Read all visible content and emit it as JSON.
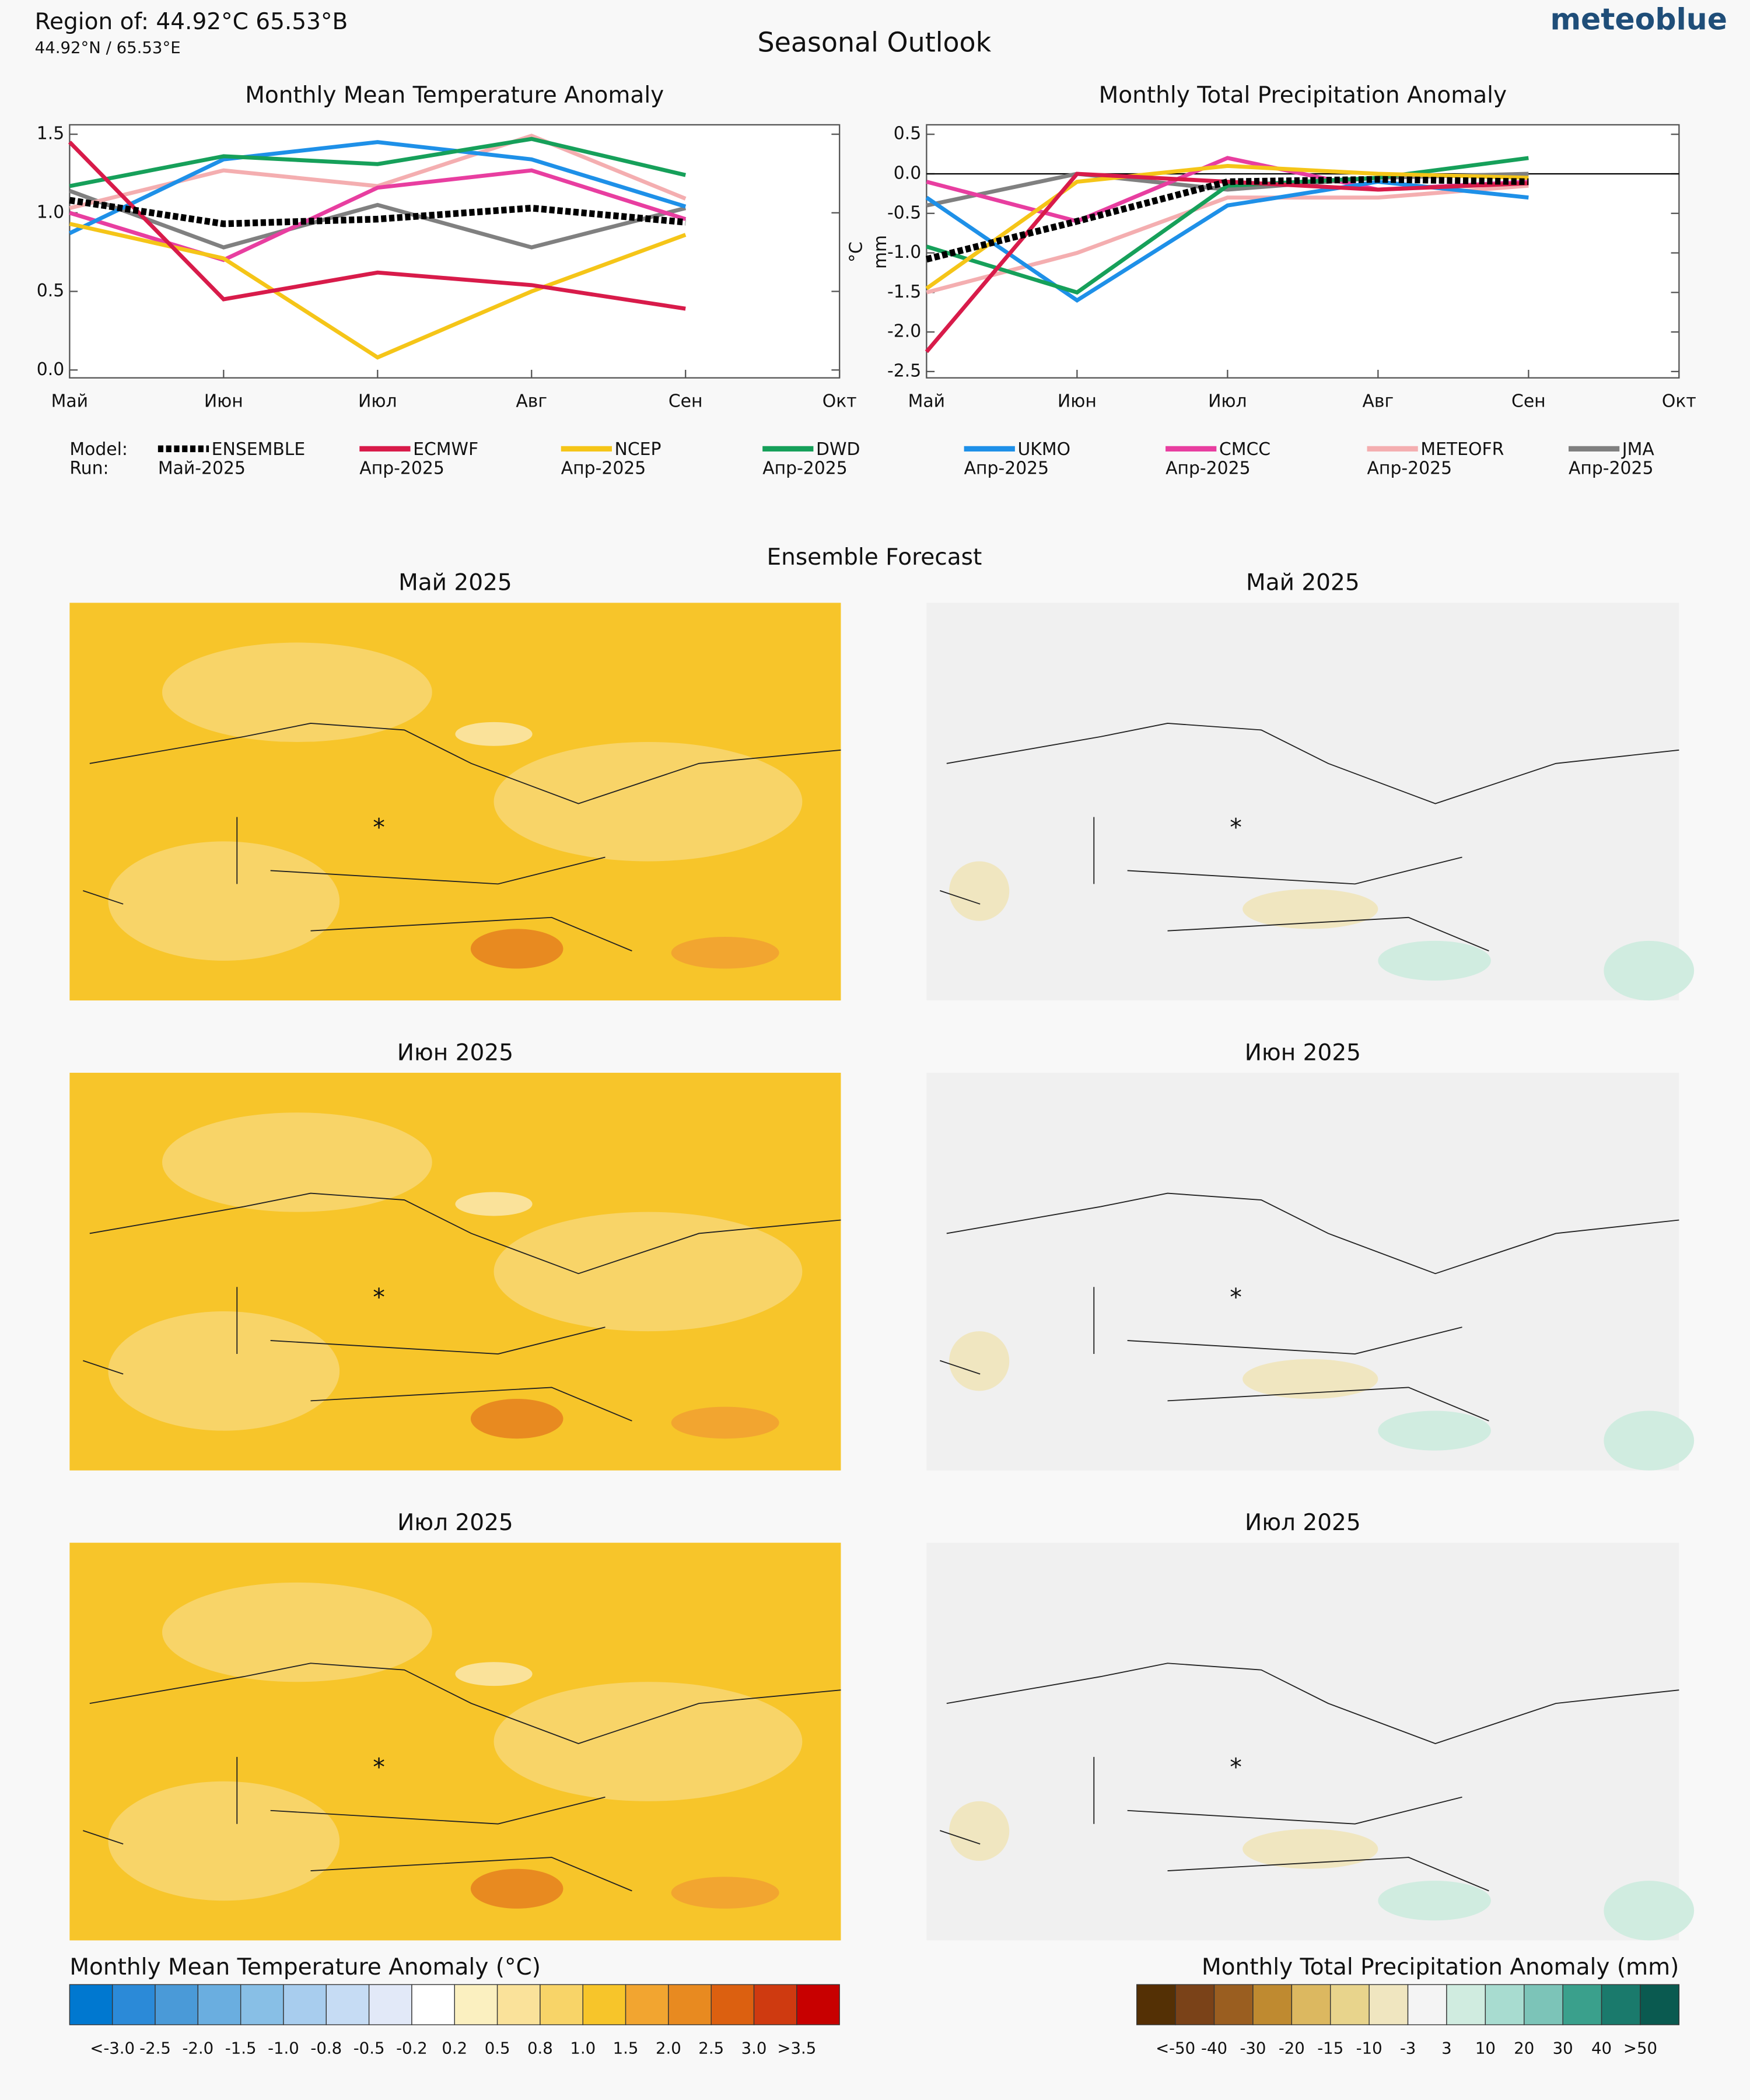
{
  "header": {
    "region": "Region of: 44.92°C 65.53°B",
    "coords": "44.92°N / 65.53°E",
    "title": "Seasonal Outlook",
    "brand": "meteoblue"
  },
  "chart_data": [
    {
      "type": "line",
      "title": "Monthly Mean Temperature Anomaly",
      "ylabel": "°C",
      "categories": [
        "Май",
        "Июн",
        "Июл",
        "Авг",
        "Сен",
        "Окт"
      ],
      "ylim": [
        -0.05,
        1.56
      ],
      "yticks": [
        {
          "value": 0,
          "label": "0.0"
        },
        0.5,
        {
          "value": 1,
          "label": "1.0"
        },
        1.5
      ],
      "series": [
        {
          "name": "ENSEMBLE",
          "color": "#000000",
          "values": [
            1.08,
            0.93,
            0.96,
            1.03,
            0.94,
            null
          ]
        },
        {
          "name": "ECMWF",
          "color": "#d81b4a",
          "values": [
            1.45,
            0.45,
            0.62,
            0.54,
            0.39,
            null
          ]
        },
        {
          "name": "NCEP",
          "color": "#f5c518",
          "values": [
            0.93,
            0.71,
            0.08,
            0.5,
            0.86,
            null
          ]
        },
        {
          "name": "DWD",
          "color": "#16a05a",
          "values": [
            1.17,
            1.36,
            1.31,
            1.47,
            1.24,
            null
          ]
        },
        {
          "name": "UKMO",
          "color": "#1e90e8",
          "values": [
            0.87,
            1.34,
            1.45,
            1.34,
            1.04,
            null
          ]
        },
        {
          "name": "CMCC",
          "color": "#e83ea0",
          "values": [
            1.0,
            0.7,
            1.16,
            1.27,
            0.96,
            null
          ]
        },
        {
          "name": "METEOFR",
          "color": "#f4aeb0",
          "values": [
            1.03,
            1.27,
            1.17,
            1.49,
            1.09,
            null
          ]
        },
        {
          "name": "JMA",
          "color": "#808080",
          "values": [
            1.14,
            0.78,
            1.05,
            0.78,
            1.03,
            null
          ]
        }
      ]
    },
    {
      "type": "line",
      "title": "Monthly Total Precipitation Anomaly",
      "ylabel": "mm",
      "categories": [
        "Май",
        "Июн",
        "Июл",
        "Авг",
        "Сен",
        "Окт"
      ],
      "ylim": [
        -2.58,
        0.62
      ],
      "yticks": [
        0.5,
        {
          "value": 0,
          "label": "0.0"
        },
        -0.5,
        {
          "value": -1,
          "label": "-1.0"
        },
        -1.5,
        {
          "value": -2,
          "label": "-2.0"
        },
        -2.5
      ],
      "zero_line": true,
      "series": [
        {
          "name": "ENSEMBLE",
          "color": "#000000",
          "values": [
            -1.08,
            -0.6,
            -0.1,
            -0.07,
            -0.1,
            null
          ]
        },
        {
          "name": "ECMWF",
          "color": "#d81b4a",
          "values": [
            -2.25,
            0.0,
            -0.1,
            -0.2,
            -0.12,
            null
          ]
        },
        {
          "name": "NCEP",
          "color": "#f5c518",
          "values": [
            -1.45,
            -0.1,
            0.1,
            0.0,
            -0.05,
            null
          ]
        },
        {
          "name": "DWD",
          "color": "#16a05a",
          "values": [
            -0.92,
            -1.5,
            -0.15,
            -0.05,
            0.2,
            null
          ]
        },
        {
          "name": "UKMO",
          "color": "#1e90e8",
          "values": [
            -0.3,
            -1.6,
            -0.4,
            -0.1,
            -0.3,
            null
          ]
        },
        {
          "name": "CMCC",
          "color": "#e83ea0",
          "values": [
            -0.1,
            -0.6,
            0.2,
            -0.2,
            -0.1,
            null
          ]
        },
        {
          "name": "METEOFR",
          "color": "#f4aeb0",
          "values": [
            -1.5,
            -1.0,
            -0.3,
            -0.3,
            -0.15,
            null
          ]
        },
        {
          "name": "JMA",
          "color": "#808080",
          "values": [
            -0.4,
            0.0,
            -0.2,
            -0.05,
            0.0,
            null
          ]
        }
      ]
    }
  ],
  "legend": {
    "model_label": "Model:",
    "run_label": "Run:",
    "runs": [
      "Май-2025",
      "Апр-2025",
      "Апр-2025",
      "Апр-2025",
      "Апр-2025",
      "Апр-2025",
      "Апр-2025",
      "Апр-2025"
    ]
  },
  "ensemble_title": "Ensemble Forecast",
  "maps": [
    {
      "title": "Май 2025",
      "kind": "temperature"
    },
    {
      "title": "Май 2025",
      "kind": "precipitation"
    },
    {
      "title": "Июн 2025",
      "kind": "temperature"
    },
    {
      "title": "Июн 2025",
      "kind": "precipitation"
    },
    {
      "title": "Июл 2025",
      "kind": "temperature"
    },
    {
      "title": "Июл 2025",
      "kind": "precipitation"
    }
  ],
  "colorbars": [
    {
      "title": "Monthly Mean Temperature Anomaly (°C)",
      "colors": [
        "#0078d0",
        "#2b8ad8",
        "#4a9ad8",
        "#6aaee0",
        "#88bfe6",
        "#a8cdee",
        "#c6dcf4",
        "#e2e9f8",
        "#ffffff",
        "#fbf0c0",
        "#fae29a",
        "#f8d468",
        "#f7c52a",
        "#f2a530",
        "#e88a20",
        "#dc6010",
        "#cf3a10",
        "#c80000"
      ],
      "labels": [
        "<-3.0",
        "-2.5",
        "-2.0",
        "-1.5",
        "-1.0",
        "-0.8",
        "-0.5",
        "-0.2",
        "0.2",
        "0.5",
        "0.8",
        "1.0",
        "1.5",
        "2.0",
        "2.5",
        "3.0",
        ">3.5"
      ]
    },
    {
      "title": "Monthly Total Precipitation Anomaly (mm)",
      "colors": [
        "#543005",
        "#7a4218",
        "#9a5e20",
        "#bf8a30",
        "#dcb860",
        "#e8d48c",
        "#f0e6c0",
        "#f4f4f4",
        "#d0ece0",
        "#a8dcd0",
        "#7cc4b8",
        "#3aa08c",
        "#1a7a6c",
        "#0a5a50"
      ],
      "labels": [
        "<-50",
        "-40",
        "-30",
        "-20",
        "-15",
        "-10",
        "-3",
        "3",
        "10",
        "20",
        "30",
        "40",
        ">50"
      ]
    }
  ]
}
